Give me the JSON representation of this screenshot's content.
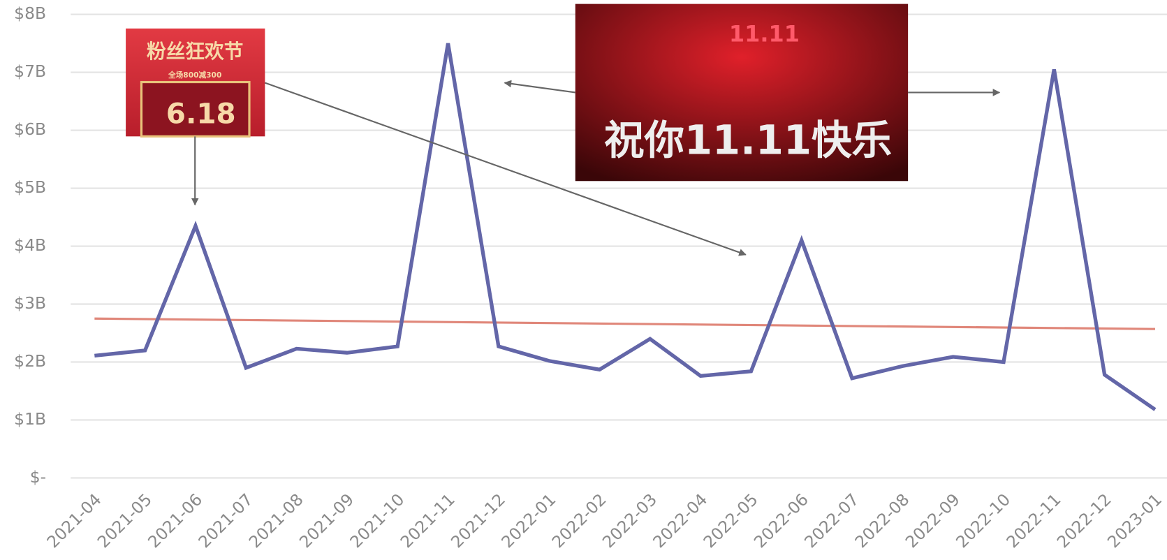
{
  "chart_data": {
    "type": "line",
    "categories": [
      "2021-04",
      "2021-05",
      "2021-06",
      "2021-07",
      "2021-08",
      "2021-09",
      "2021-10",
      "2021-11",
      "2021-12",
      "2022-01",
      "2022-02",
      "2022-03",
      "2022-04",
      "2022-05",
      "2022-06",
      "2022-07",
      "2022-08",
      "2022-09",
      "2022-10",
      "2022-11",
      "2022-12",
      "2023-01"
    ],
    "series": [
      {
        "color": "#6366a8",
        "values": [
          2.11,
          2.2,
          4.35,
          1.9,
          2.23,
          2.16,
          2.27,
          7.5,
          2.27,
          2.02,
          1.87,
          2.4,
          1.76,
          1.84,
          4.1,
          1.72,
          1.93,
          2.09,
          2.0,
          7.05,
          1.78,
          1.18
        ]
      }
    ],
    "trend": {
      "color": "#e0877a",
      "values": [
        2.75,
        2.57
      ]
    },
    "ylim": [
      0,
      8
    ],
    "yticks": [
      {
        "value": 0,
        "label": "$-"
      },
      {
        "value": 1,
        "label": "$1B"
      },
      {
        "value": 2,
        "label": "$2B"
      },
      {
        "value": 3,
        "label": "$3B"
      },
      {
        "value": 4,
        "label": "$4B"
      },
      {
        "value": 5,
        "label": "$5B"
      },
      {
        "value": 6,
        "label": "$6B"
      },
      {
        "value": 7,
        "label": "$7B"
      },
      {
        "value": 8,
        "label": "$8B"
      }
    ],
    "grid": true,
    "images": [
      {
        "texts": [
          "粉丝狂欢节",
          "全场800减300",
          "6.18"
        ]
      },
      {
        "texts": [
          "11.11",
          "祝你11.11快乐"
        ]
      }
    ]
  }
}
